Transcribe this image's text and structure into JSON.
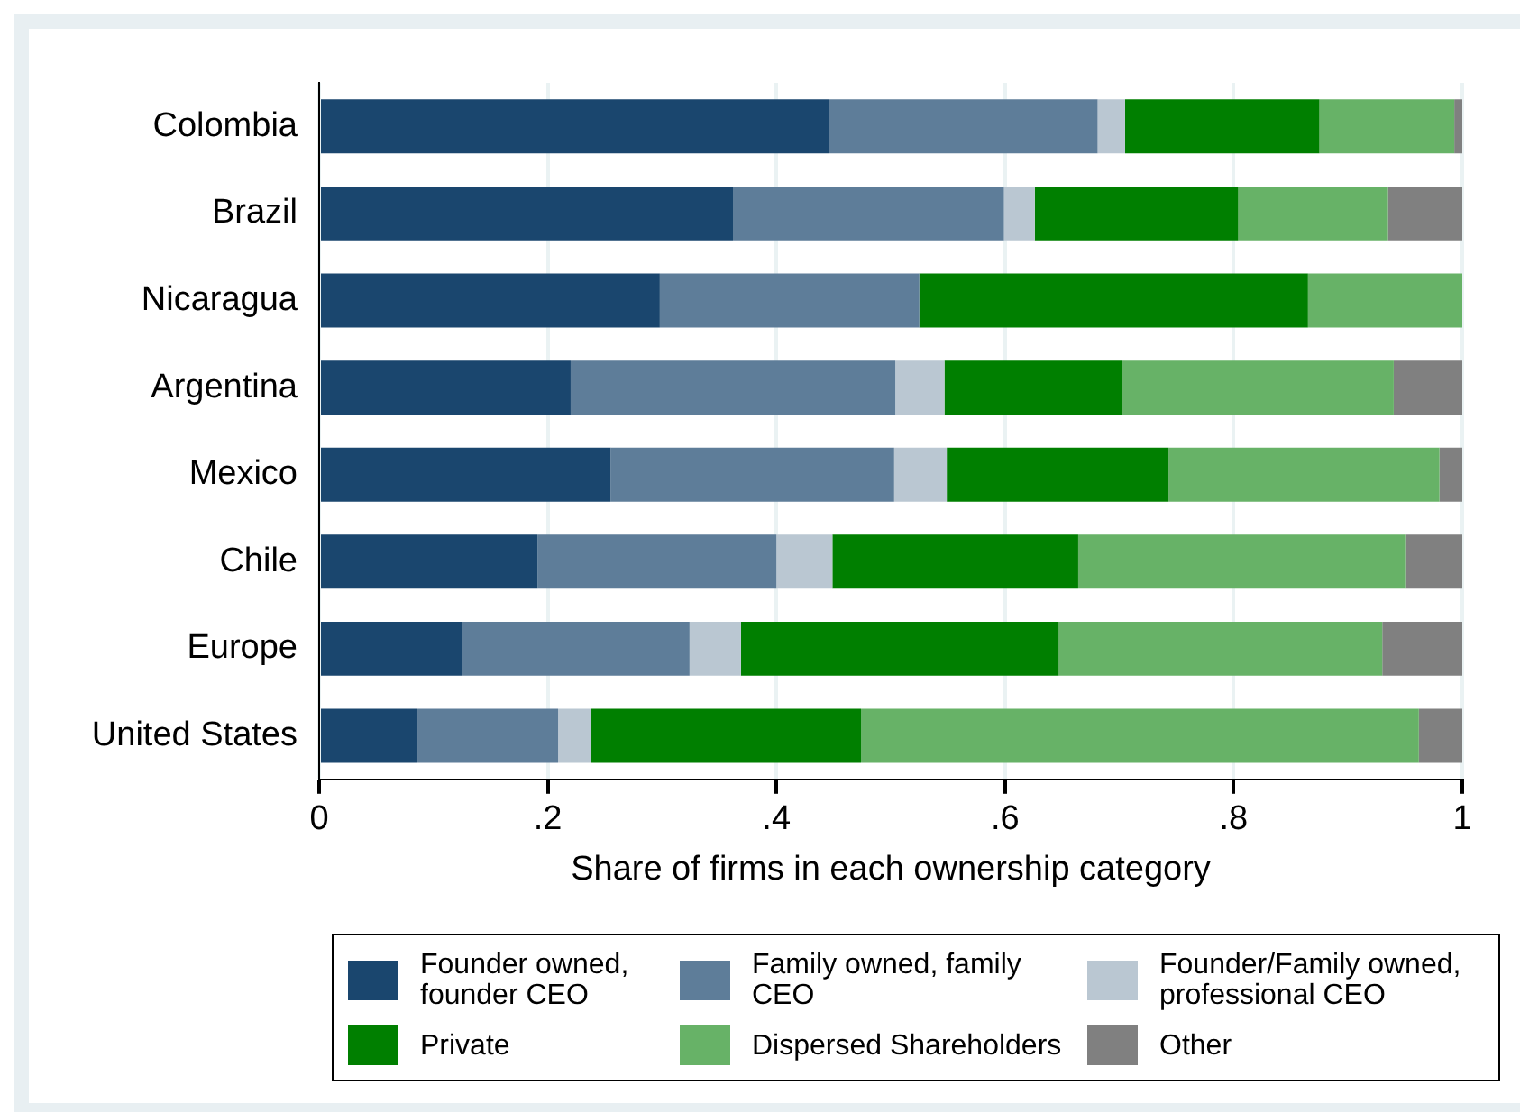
{
  "chart_data": {
    "type": "bar",
    "orientation": "horizontal",
    "stacked": true,
    "xlabel": "Share of firms in each ownership category",
    "categories": [
      "Colombia",
      "Brazil",
      "Nicaragua",
      "Argentina",
      "Mexico",
      "Chile",
      "Europe",
      "United States"
    ],
    "series": [
      {
        "name": "Founder owned, founder CEO",
        "color": "#1a466e",
        "values": [
          0.446,
          0.362,
          0.298,
          0.22,
          0.255,
          0.191,
          0.125,
          0.086
        ]
      },
      {
        "name": "Family owned, family CEO",
        "color": "#5e7d99",
        "values": [
          0.235,
          0.237,
          0.227,
          0.284,
          0.248,
          0.209,
          0.199,
          0.123
        ]
      },
      {
        "name": "Founder/Family owned, professional CEO",
        "color": "#bac7d2",
        "values": [
          0.024,
          0.027,
          0,
          0.043,
          0.046,
          0.049,
          0.045,
          0.029
        ]
      },
      {
        "name": "Private",
        "color": "#007f00",
        "values": [
          0.17,
          0.178,
          0.34,
          0.155,
          0.194,
          0.215,
          0.278,
          0.236
        ]
      },
      {
        "name": "Dispersed Shareholders",
        "color": "#67b267",
        "values": [
          0.118,
          0.131,
          0.135,
          0.238,
          0.237,
          0.286,
          0.283,
          0.488
        ]
      },
      {
        "name": "Other",
        "color": "#808080",
        "values": [
          0.007,
          0.065,
          0,
          0.06,
          0.02,
          0.05,
          0.07,
          0.038
        ]
      }
    ],
    "xlim": [
      0,
      1
    ],
    "xticks": [
      0,
      {
        "value": 0.2,
        "label": ".2"
      },
      {
        "value": 0.4,
        "label": ".4"
      },
      {
        "value": 0.6,
        "label": ".6"
      },
      {
        "value": 0.8,
        "label": ".8"
      },
      1
    ],
    "grid": "x",
    "legend": "bottom"
  }
}
